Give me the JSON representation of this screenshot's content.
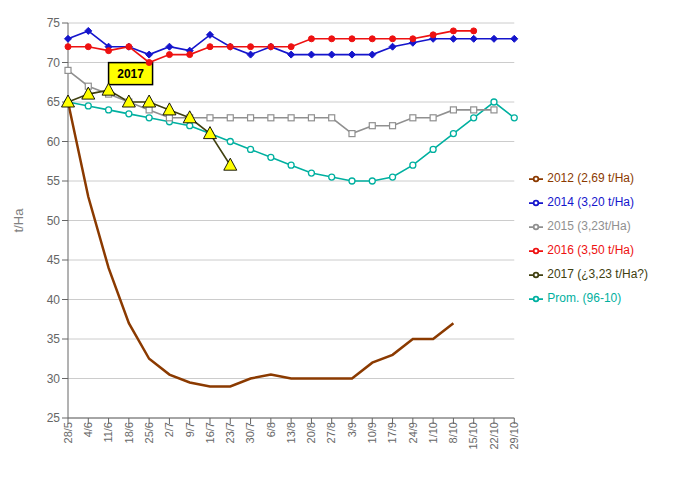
{
  "chart_data": {
    "type": "line",
    "categories": [
      "28/5",
      "4/6",
      "11/6",
      "18/6",
      "25/6",
      "2/7",
      "9/7",
      "16/7",
      "23/7",
      "30/7",
      "6/8",
      "13/8",
      "20/8",
      "27/8",
      "3/9",
      "10/9",
      "17/9",
      "24/9",
      "1/10",
      "8/10",
      "15/10",
      "22/10",
      "29/10"
    ],
    "y_label": "t/Ha",
    "ylim": [
      25,
      75
    ],
    "yticks": [
      25,
      30,
      35,
      40,
      45,
      50,
      55,
      60,
      65,
      70,
      75
    ],
    "grid": true,
    "legend": "right",
    "series": [
      {
        "name": "Prom. (96-10)",
        "color": "#00B0A0",
        "marker": "circle-open",
        "values": [
          65,
          64.5,
          64,
          63.5,
          63,
          62.5,
          62,
          61,
          60,
          59,
          58,
          57,
          56,
          55.5,
          55,
          55,
          55.5,
          57,
          59,
          61,
          63,
          65,
          63
        ]
      },
      {
        "name": "2012 (2,69 t/Ha)",
        "color": "#8B3A00",
        "marker": "none",
        "values": [
          65,
          53,
          44,
          37,
          32.5,
          30.5,
          29.5,
          29,
          29,
          30,
          30.5,
          30,
          30,
          30,
          30,
          32,
          33,
          35,
          35,
          37,
          null,
          null,
          null
        ]
      },
      {
        "name": "2014  (3,20 t/Ha)",
        "color": "#1515CC",
        "marker": "diamond",
        "values": [
          73,
          74,
          72,
          72,
          71,
          72,
          71.5,
          73.5,
          72,
          71,
          72,
          71,
          71,
          71,
          71,
          71,
          72,
          72.5,
          73,
          73,
          73,
          73,
          73
        ]
      },
      {
        "name": "2015 (3,23t/Ha)",
        "color": "#909090",
        "marker": "square-open",
        "values": [
          69,
          67,
          66,
          65,
          64,
          63,
          63,
          63,
          63,
          63,
          63,
          63,
          63,
          63,
          61,
          62,
          62,
          63,
          63,
          64,
          64,
          64,
          null
        ]
      },
      {
        "name": "2016 (3,50 t/Ha)",
        "color": "#EE1111",
        "marker": "circle",
        "values": [
          72,
          72,
          71.5,
          72,
          70,
          71,
          71,
          72,
          72,
          72,
          72,
          72,
          73,
          73,
          73,
          73,
          73,
          73,
          73.5,
          74,
          74,
          null,
          null
        ]
      },
      {
        "name": "2017 (¿3,23 t/Ha?)",
        "color": "#404010",
        "marker": "triangle",
        "values": [
          65,
          66,
          66.5,
          65,
          65,
          64,
          63,
          61,
          57,
          null,
          null,
          null,
          null,
          null,
          null,
          null,
          null,
          null,
          null,
          null,
          null,
          null,
          null
        ]
      }
    ],
    "annotations": [
      {
        "text": "2017",
        "x": "11/6",
        "y": 67.2
      }
    ]
  }
}
